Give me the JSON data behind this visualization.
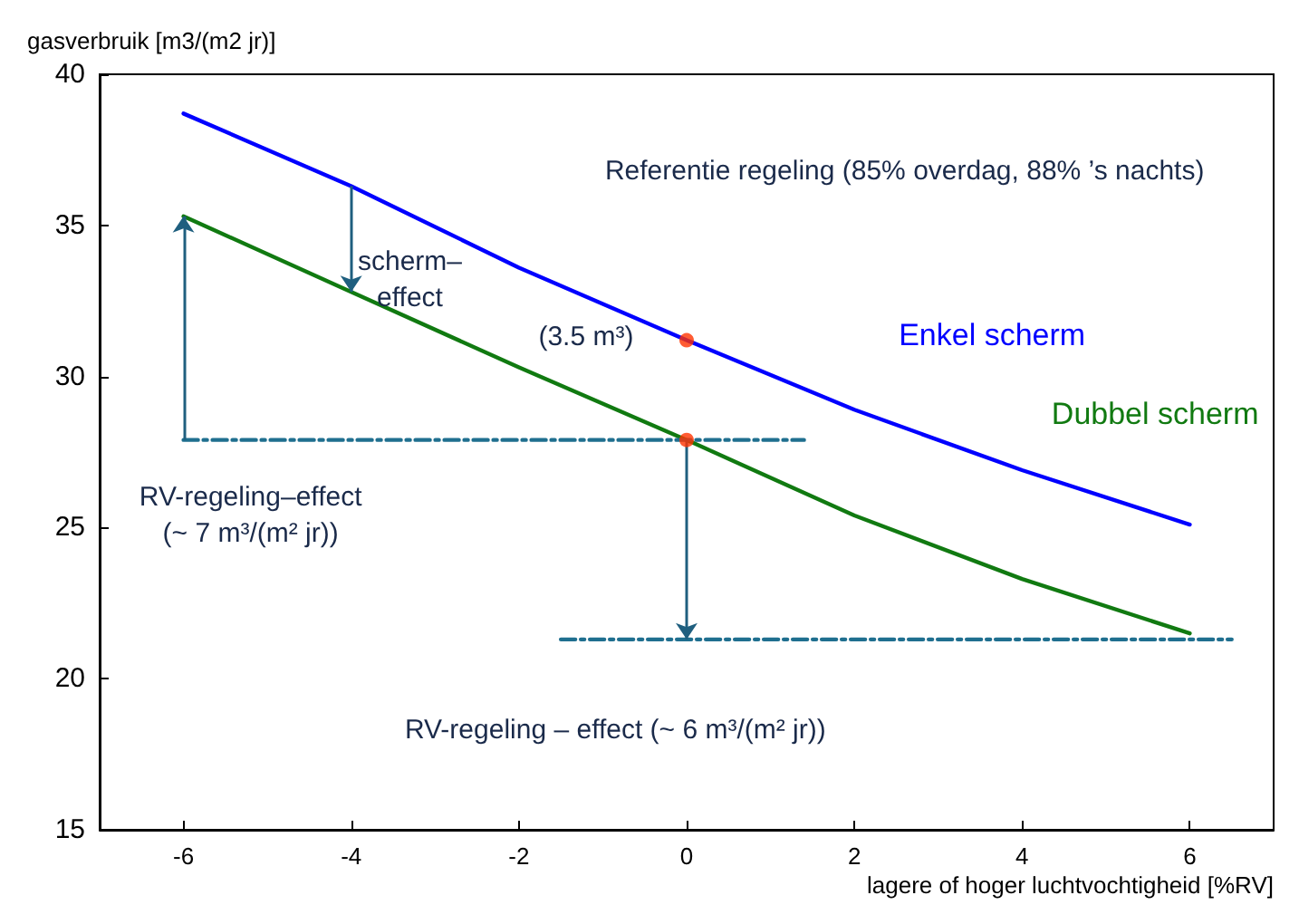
{
  "chart_data": {
    "type": "line",
    "xlabel": "lagere of hoger luchtvochtigheid [%RV]",
    "ylabel": "gasverbruik [m3/(m2 jr)]",
    "xlim": [
      -7,
      7
    ],
    "xticks": [
      -6,
      -4,
      -2,
      0,
      2,
      4,
      6
    ],
    "ylim": [
      15,
      40
    ],
    "yticks": [
      15,
      20,
      25,
      30,
      35,
      40
    ],
    "legend": false,
    "marker": "none",
    "series": [
      {
        "name": "Enkel scherm",
        "color": "#0000ff",
        "x": [
          -6,
          -4,
          -2,
          0,
          2,
          4,
          6
        ],
        "values": [
          38.7,
          36.3,
          33.6,
          31.2,
          28.9,
          26.9,
          25.1
        ]
      },
      {
        "name": "Dubbel scherm",
        "color": "#117a11",
        "x": [
          -6,
          -4,
          -2,
          0,
          2,
          4,
          6
        ],
        "values": [
          35.3,
          32.8,
          30.3,
          27.9,
          25.4,
          23.3,
          21.5
        ]
      },
      {
        "type": "line",
        "color": "#1f6f8f",
        "line_style": "dashed",
        "x": [
          -6,
          1.4
        ],
        "values": [
          27.9,
          27.9
        ]
      },
      {
        "type": "line",
        "color": "#1f6f8f",
        "line_style": "dashed",
        "x": [
          -1.5,
          6.5
        ],
        "values": [
          21.3,
          21.3
        ]
      },
      {
        "type": "scatter",
        "color": "#ff3300",
        "marker": "circle",
        "x": [
          0,
          0
        ],
        "values": [
          31.2,
          27.9
        ]
      }
    ],
    "annotations": [
      "Referentie regeling (85% overdag, 88% ’s nachts)",
      "scherm–\neffect",
      "(3.5 m³)",
      "RV-regeling–effect\n(~ 7 m³/(m² jr))",
      "RV-regeling – effect (~ 6 m³/(m² jr))"
    ]
  }
}
